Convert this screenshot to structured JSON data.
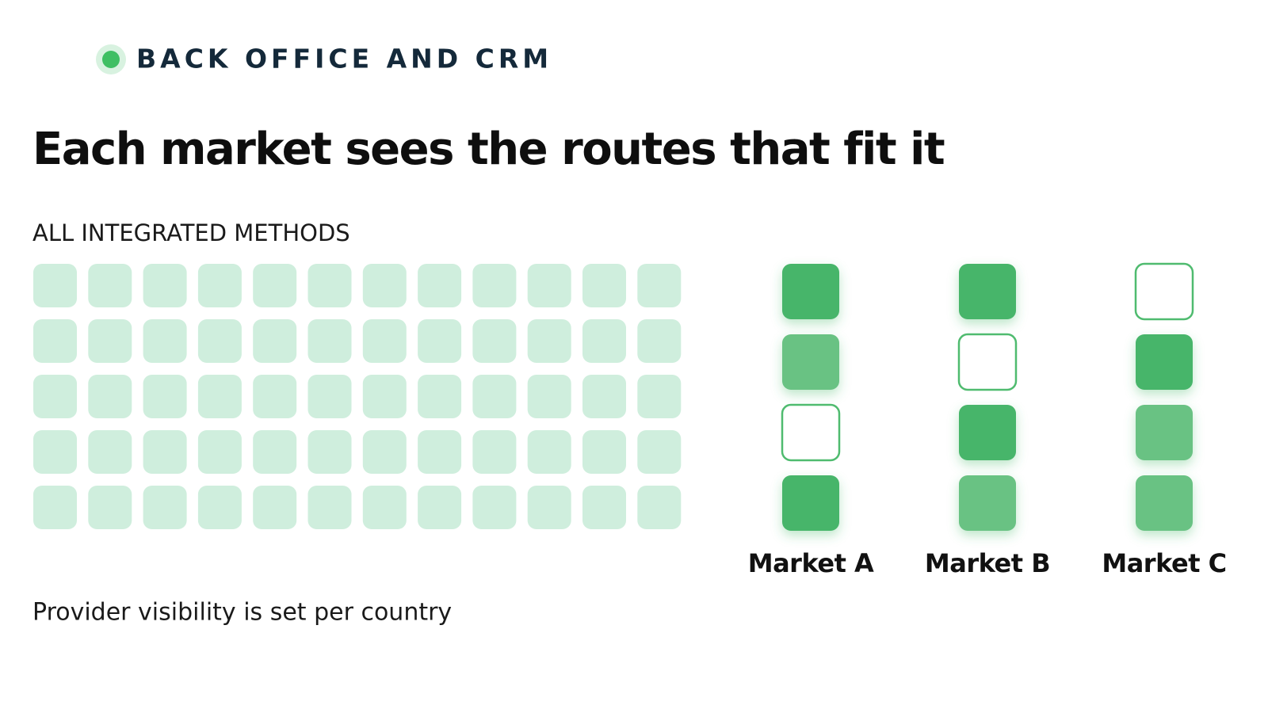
{
  "header": {
    "eyebrow": "BACK OFFICE AND CRM",
    "title": "Each market sees the routes that fit it"
  },
  "methods": {
    "label": "ALL INTEGRATED METHODS"
  },
  "markets": [
    {
      "label": "Market A"
    },
    {
      "label": "Market B"
    },
    {
      "label": "Market C"
    }
  ],
  "caption": "Provider visibility is set per country"
}
